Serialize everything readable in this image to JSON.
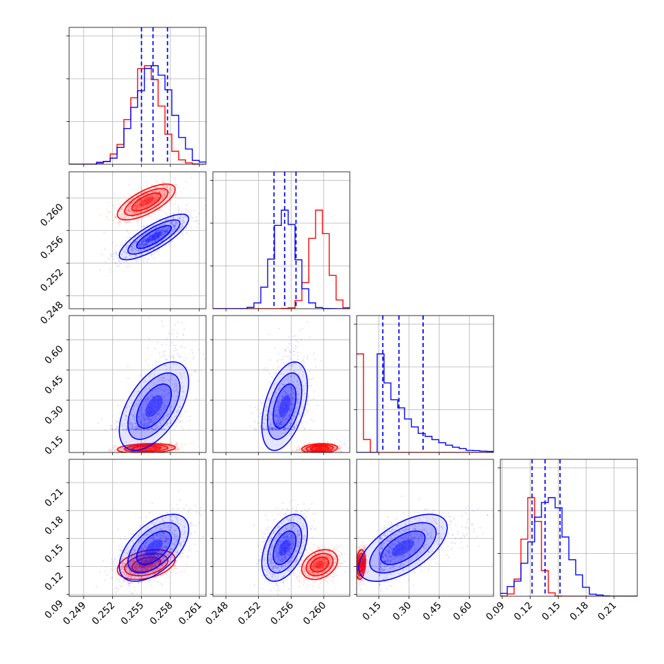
{
  "chart_data": {
    "type": "corner",
    "description_free": true,
    "colors": {
      "model_a": "#ff0000",
      "model_b": "#0000ff",
      "quantile_line": "#0000ff",
      "grid": "#b0b0b0"
    },
    "grid": true,
    "parameters": [
      {
        "range": [
          0.2475,
          0.2617
        ],
        "ticks": [
          0.249,
          0.252,
          0.255,
          0.258,
          0.261
        ],
        "tick_labels": [
          "0.249",
          "0.252",
          "0.255",
          "0.258",
          "0.261"
        ]
      },
      {
        "range": [
          0.2464,
          0.2632
        ],
        "ticks": [
          0.248,
          0.252,
          0.256,
          0.26
        ],
        "tick_labels": [
          "0.248",
          "0.252",
          "0.256",
          "0.260"
        ]
      },
      {
        "range": [
          0.04,
          0.72
        ],
        "ticks": [
          0.15,
          0.3,
          0.45,
          0.6
        ],
        "tick_labels": [
          "0.15",
          "0.30",
          "0.45",
          "0.60"
        ]
      },
      {
        "range": [
          0.088,
          0.235
        ],
        "ticks": [
          0.09,
          0.12,
          0.15,
          0.18,
          0.21
        ],
        "tick_labels": [
          "0.09",
          "0.12",
          "0.15",
          "0.18",
          "0.21"
        ]
      }
    ],
    "quantile_lines": [
      [
        0.255,
        0.2562,
        0.2577
      ],
      [
        0.2539,
        0.2552,
        0.2566
      ],
      [
        0.17,
        0.25,
        0.37
      ],
      [
        0.122,
        0.136,
        0.152
      ]
    ],
    "posteriors": [
      {
        "name_hidden": "red",
        "color": "#ff0000",
        "mean": [
          0.2555,
          0.2595,
          0.06,
          0.122
        ],
        "sd": [
          0.0015,
          0.0011,
          0.012,
          0.008
        ],
        "corr": {
          "0-1": 0.7,
          "0-2": 0.2,
          "0-3": 0.35,
          "1-2": 0.15,
          "1-3": 0.3,
          "2-3": 0.2
        }
      },
      {
        "name_hidden": "blue",
        "color": "#0000ff",
        "mean": [
          0.2563,
          0.2552,
          0.27,
          0.14
        ],
        "sd": [
          0.0018,
          0.0014,
          0.11,
          0.018
        ],
        "corr": {
          "0-1": 0.8,
          "0-2": 0.55,
          "0-3": 0.55,
          "1-2": 0.45,
          "1-3": 0.45,
          "2-3": 0.6
        }
      }
    ]
  }
}
